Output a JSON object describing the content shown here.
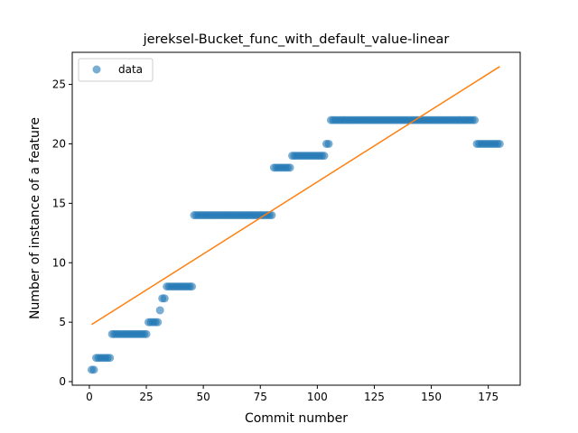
{
  "chart_data": {
    "type": "scatter",
    "title": "jereksel-Bucket_func_with_default_value-linear",
    "xlabel": "Commit number",
    "ylabel": "Number of instance of a feature",
    "xlim": [
      -7.5,
      189
    ],
    "ylim": [
      -0.3,
      27.7
    ],
    "xticks": [
      0,
      25,
      50,
      75,
      100,
      125,
      150,
      175
    ],
    "yticks": [
      0,
      5,
      10,
      15,
      20,
      25
    ],
    "grid": false,
    "legend": {
      "position": "top-left",
      "entries": [
        "data"
      ]
    },
    "colors": {
      "points": "#1f77b4",
      "fit_line": "#ff7f0e"
    },
    "series": [
      {
        "name": "data",
        "type": "scatter",
        "points": [
          {
            "x_start": 1,
            "x_end": 2,
            "y": 1
          },
          {
            "x_start": 3,
            "x_end": 9,
            "y": 2
          },
          {
            "x_start": 10,
            "x_end": 25,
            "y": 4
          },
          {
            "x_start": 26,
            "x_end": 30,
            "y": 5
          },
          {
            "x_start": 31,
            "x_end": 31,
            "y": 6
          },
          {
            "x_start": 32,
            "x_end": 33,
            "y": 7
          },
          {
            "x_start": 34,
            "x_end": 45,
            "y": 8
          },
          {
            "x_start": 46,
            "x_end": 80,
            "y": 14
          },
          {
            "x_start": 81,
            "x_end": 88,
            "y": 18
          },
          {
            "x_start": 89,
            "x_end": 103,
            "y": 19
          },
          {
            "x_start": 104,
            "x_end": 105,
            "y": 20
          },
          {
            "x_start": 106,
            "x_end": 169,
            "y": 22
          },
          {
            "x_start": 170,
            "x_end": 180,
            "y": 20
          }
        ]
      },
      {
        "type": "line",
        "x": [
          1,
          180
        ],
        "y": [
          4.8,
          26.5
        ]
      }
    ]
  }
}
